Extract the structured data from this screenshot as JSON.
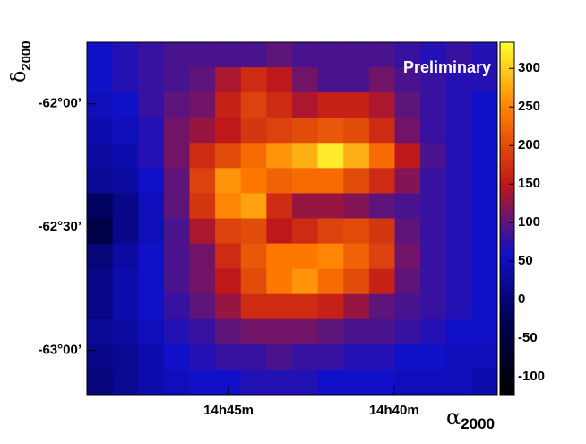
{
  "chart_data": {
    "type": "heatmap",
    "annotation": "Preliminary",
    "x_label": {
      "symbol": "α",
      "subscript": "2000"
    },
    "y_label": {
      "symbol": "δ",
      "subscript": "2000"
    },
    "xlim": [
      222.32,
      219.22
    ],
    "ylim": [
      -63.18,
      -61.75
    ],
    "xticks": [
      {
        "value": 221.25,
        "label": "14h45m"
      },
      {
        "value": 220,
        "label": "14h40m"
      }
    ],
    "yticks": [
      {
        "value": -62,
        "label": "-62°00’"
      },
      {
        "value": -62.5,
        "label": "-62°30’"
      },
      {
        "value": -63,
        "label": "-63°00’"
      }
    ],
    "zlim": [
      -123,
      334
    ],
    "zticks": [
      300,
      250,
      200,
      150,
      100,
      50,
      0,
      -50,
      -100
    ],
    "colormap": [
      "#000000",
      "#000050",
      "#1010c8",
      "#c01818",
      "#ff7a00",
      "#ffff30"
    ],
    "z": [
      [
        60,
        70,
        80,
        90,
        90,
        90,
        90,
        100,
        90,
        90,
        90,
        90,
        80,
        70,
        80,
        70
      ],
      [
        60,
        70,
        80,
        90,
        100,
        140,
        170,
        150,
        110,
        90,
        90,
        110,
        90,
        80,
        70,
        70
      ],
      [
        50,
        60,
        80,
        100,
        110,
        160,
        190,
        170,
        140,
        160,
        160,
        140,
        100,
        80,
        70,
        60
      ],
      [
        40,
        50,
        70,
        110,
        130,
        150,
        180,
        190,
        200,
        210,
        200,
        170,
        110,
        80,
        70,
        60
      ],
      [
        30,
        40,
        70,
        110,
        170,
        200,
        230,
        260,
        280,
        320,
        280,
        230,
        150,
        90,
        70,
        60
      ],
      [
        20,
        30,
        60,
        100,
        190,
        260,
        240,
        220,
        230,
        230,
        200,
        170,
        120,
        80,
        70,
        60
      ],
      [
        -20,
        10,
        50,
        100,
        180,
        250,
        270,
        170,
        130,
        130,
        120,
        100,
        90,
        80,
        70,
        60
      ],
      [
        -40,
        10,
        50,
        90,
        140,
        190,
        200,
        150,
        170,
        190,
        200,
        180,
        100,
        80,
        70,
        60
      ],
      [
        0,
        30,
        60,
        90,
        110,
        170,
        210,
        240,
        240,
        250,
        220,
        190,
        110,
        80,
        70,
        60
      ],
      [
        10,
        40,
        60,
        90,
        110,
        150,
        200,
        240,
        260,
        230,
        200,
        160,
        100,
        80,
        70,
        60
      ],
      [
        10,
        40,
        60,
        80,
        100,
        130,
        170,
        170,
        170,
        160,
        130,
        100,
        90,
        80,
        70,
        60
      ],
      [
        20,
        30,
        50,
        70,
        80,
        100,
        110,
        110,
        110,
        100,
        90,
        90,
        80,
        70,
        60,
        60
      ],
      [
        10,
        20,
        40,
        60,
        70,
        80,
        80,
        90,
        80,
        80,
        70,
        70,
        60,
        60,
        50,
        50
      ],
      [
        0,
        20,
        40,
        50,
        60,
        60,
        70,
        70,
        70,
        60,
        60,
        60,
        50,
        50,
        50,
        40
      ]
    ]
  }
}
